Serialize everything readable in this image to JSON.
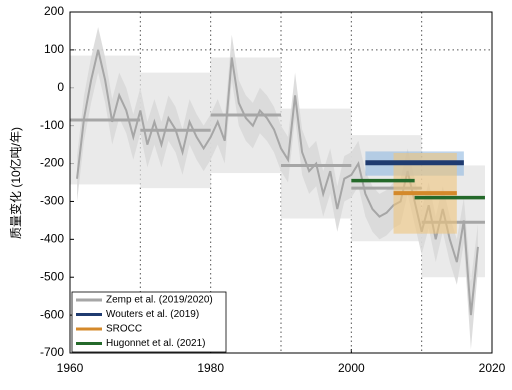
{
  "chart_data": {
    "type": "line",
    "y_label": "质量变化 (10亿吨/年)",
    "xlim": [
      1960,
      2020
    ],
    "ylim": [
      -700,
      200
    ],
    "xticks": [
      1960,
      1980,
      2000,
      2020
    ],
    "xgrid": [
      1970,
      1980,
      1990,
      2000,
      2010
    ],
    "yticks": [
      200,
      100,
      0,
      -100,
      -200,
      -300,
      -400,
      -500,
      -600,
      -700
    ],
    "ygrid": [
      100
    ],
    "grid": true,
    "legend": "lower left",
    "series": [
      {
        "name": "Zemp et al. (2019/2020)",
        "color": "#a6a6a6",
        "band_color": "#d9d9d9",
        "box_color": "#e3e3e3",
        "x": [
          1961,
          1962,
          1963,
          1964,
          1965,
          1966,
          1967,
          1968,
          1969,
          1970,
          1971,
          1972,
          1973,
          1974,
          1975,
          1976,
          1977,
          1978,
          1979,
          1980,
          1981,
          1982,
          1983,
          1984,
          1985,
          1986,
          1987,
          1988,
          1989,
          1990,
          1991,
          1992,
          1993,
          1994,
          1995,
          1996,
          1997,
          1998,
          1999,
          2000,
          2001,
          2002,
          2003,
          2004,
          2005,
          2006,
          2007,
          2008,
          2009,
          2010,
          2011,
          2012,
          2013,
          2014,
          2015,
          2016,
          2017,
          2018
        ],
        "values": [
          -240,
          -80,
          20,
          100,
          20,
          -90,
          -20,
          -60,
          -130,
          -60,
          -150,
          -90,
          -150,
          -80,
          -110,
          -170,
          -90,
          -130,
          -160,
          -130,
          -90,
          -140,
          80,
          -40,
          -80,
          -100,
          -60,
          -80,
          -110,
          -160,
          -190,
          -20,
          -170,
          -220,
          -200,
          -280,
          -220,
          -320,
          -240,
          -230,
          -200,
          -280,
          -320,
          -340,
          -330,
          -310,
          -300,
          -220,
          -300,
          -380,
          -310,
          -400,
          -320,
          -400,
          -460,
          -350,
          -600,
          -420
        ],
        "lower": [
          -300,
          -140,
          -40,
          40,
          -40,
          -150,
          -80,
          -120,
          -190,
          -120,
          -210,
          -150,
          -210,
          -140,
          -170,
          -230,
          -150,
          -190,
          -220,
          -190,
          -150,
          -200,
          20,
          -100,
          -140,
          -160,
          -120,
          -140,
          -170,
          -220,
          -250,
          -80,
          -230,
          -280,
          -260,
          -340,
          -280,
          -380,
          -300,
          -290,
          -260,
          -340,
          -380,
          -400,
          -390,
          -370,
          -360,
          -280,
          -360,
          -440,
          -370,
          -460,
          -380,
          -460,
          -520,
          -410,
          -690,
          -480
        ],
        "upper": [
          -180,
          -20,
          80,
          160,
          80,
          -30,
          40,
          0,
          -70,
          0,
          -90,
          -30,
          -90,
          -20,
          -50,
          -110,
          -30,
          -70,
          -100,
          -70,
          -30,
          -80,
          140,
          20,
          -20,
          -40,
          0,
          -20,
          -50,
          -100,
          -130,
          40,
          -110,
          -160,
          -140,
          -220,
          -160,
          -260,
          -180,
          -170,
          -140,
          -220,
          -260,
          -280,
          -270,
          -250,
          -240,
          -160,
          -240,
          -320,
          -250,
          -340,
          -260,
          -340,
          -400,
          -290,
          -510,
          -360
        ],
        "periods": [
          {
            "start": 1960,
            "end": 1970,
            "mean": -85,
            "low": -255,
            "high": 85
          },
          {
            "start": 1970,
            "end": 1980,
            "mean": -112,
            "low": -265,
            "high": 40
          },
          {
            "start": 1980,
            "end": 1990,
            "mean": -72,
            "low": -225,
            "high": 80
          },
          {
            "start": 1990,
            "end": 2000,
            "mean": -205,
            "low": -345,
            "high": -55
          },
          {
            "start": 2000,
            "end": 2010,
            "mean": -265,
            "low": -405,
            "high": -125
          },
          {
            "start": 2010,
            "end": 2019,
            "mean": -355,
            "low": -500,
            "high": -205
          }
        ]
      },
      {
        "name": "Wouters et al. (2019)",
        "color": "#1f3b70",
        "box_color": "#8fb8e0",
        "periods": [
          {
            "start": 2002,
            "end": 2016,
            "mean": -198,
            "low": -232,
            "high": -168
          }
        ]
      },
      {
        "name": "SROCC",
        "color": "#d4892a",
        "box_color": "#efc47d",
        "periods": [
          {
            "start": 2006,
            "end": 2015,
            "mean": -278,
            "low": -385,
            "high": -172
          }
        ]
      },
      {
        "name": "Hugonnet et al. (2021)",
        "color": "#24692a",
        "periods": [
          {
            "start": 2000,
            "end": 2009,
            "mean": -245
          },
          {
            "start": 2009,
            "end": 2019,
            "mean": -290
          }
        ]
      }
    ]
  }
}
